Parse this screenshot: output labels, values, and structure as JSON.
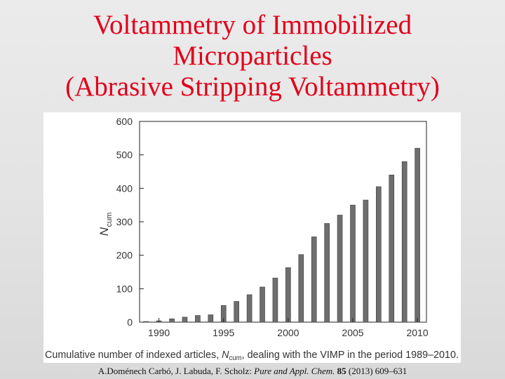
{
  "slide": {
    "title_lines": [
      "Voltammetry of Immobilized",
      "Microparticles",
      "(Abrasive Stripping Voltammetry)"
    ],
    "citation": {
      "authors": "A.Doménech Carbó, J. Labuda, F. Scholz: ",
      "journal": "Pure and Appl. Chem.",
      "volume": "85",
      "pages": "(2013) 609–631"
    },
    "colors": {
      "title": "#e2001a",
      "bar_fill": "#6e6e6e",
      "background": "#e6e6e6"
    }
  },
  "chart_data": {
    "type": "bar",
    "title": "",
    "ylabel": "N",
    "ylabel_subscript": "cum",
    "xlabel": "",
    "x": [
      1989,
      1990,
      1991,
      1992,
      1993,
      1994,
      1995,
      1996,
      1997,
      1998,
      1999,
      2000,
      2001,
      2002,
      2003,
      2004,
      2005,
      2006,
      2007,
      2008,
      2009,
      2010
    ],
    "values": [
      2,
      4,
      10,
      15,
      20,
      22,
      50,
      62,
      82,
      105,
      132,
      163,
      202,
      255,
      295,
      320,
      350,
      365,
      405,
      440,
      480,
      520
    ],
    "xticks": [
      1990,
      1995,
      2000,
      2005,
      2010
    ],
    "yticks": [
      0,
      100,
      200,
      300,
      400,
      500,
      600
    ],
    "ylim": [
      0,
      600
    ],
    "xlim": [
      1988.5,
      2010.7
    ],
    "grid": false,
    "caption": {
      "pre": "Cumulative number of indexed articles, ",
      "var": "N",
      "sub": "cum",
      "post": ", dealing with the VIMP in the period 1989–2010."
    }
  }
}
